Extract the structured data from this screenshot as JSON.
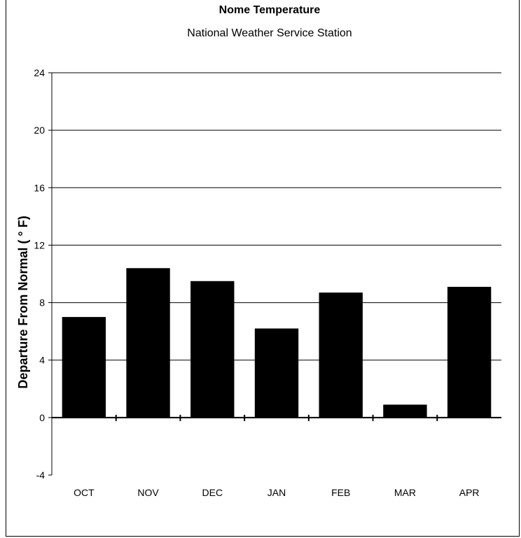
{
  "chart_data": {
    "type": "bar",
    "title": "Nome Temperature",
    "subtitle": "National Weather Service Station",
    "xlabel": "",
    "ylabel": "Departure From Normal  ( ° F)",
    "categories": [
      "OCT",
      "NOV",
      "DEC",
      "JAN",
      "FEB",
      "MAR",
      "APR"
    ],
    "values": [
      7.0,
      10.4,
      9.5,
      6.2,
      8.7,
      0.9,
      9.1
    ],
    "ylim": [
      -4,
      24
    ],
    "yticks": [
      -4,
      0,
      4,
      8,
      12,
      16,
      20,
      24
    ],
    "grid": true,
    "legend": "none",
    "bar_color": "#000000"
  }
}
